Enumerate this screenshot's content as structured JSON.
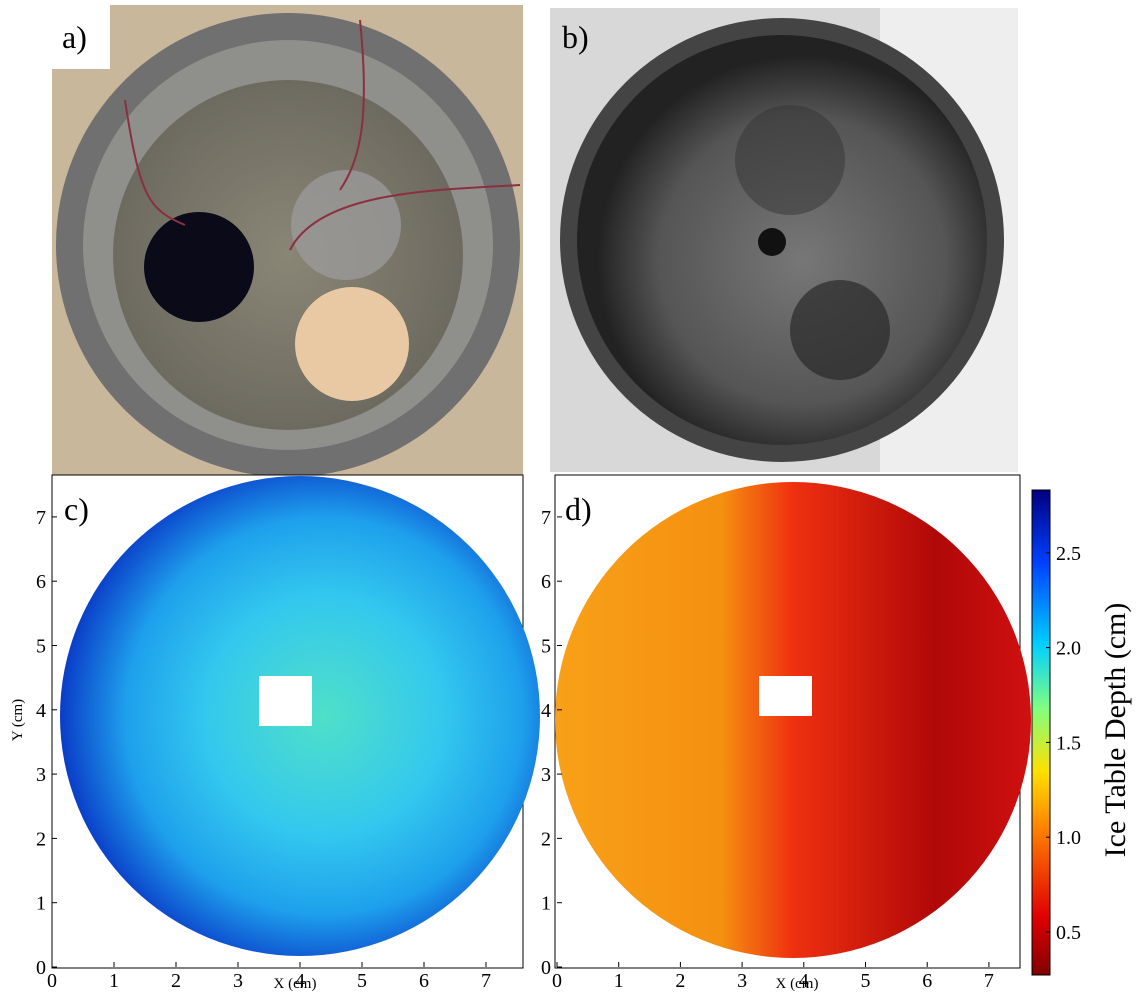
{
  "panels": [
    {
      "label": "a)"
    },
    {
      "label": "b)"
    },
    {
      "label": "c)",
      "x_label": "X (cm)",
      "y_label": "Y (cm)",
      "xticks": [
        "0",
        "1",
        "2",
        "3",
        "4",
        "5",
        "6",
        "7"
      ],
      "yticks": [
        "0",
        "1",
        "2",
        "3",
        "4",
        "5",
        "6",
        "7"
      ]
    },
    {
      "label": "d)",
      "x_label": "X (cm)",
      "xticks": [
        "0",
        "1",
        "2",
        "3",
        "4",
        "5",
        "6",
        "7"
      ],
      "yticks": [
        "0",
        "1",
        "2",
        "3",
        "4",
        "5",
        "6",
        "7"
      ]
    }
  ],
  "colorbar": {
    "label": "Ice Table Depth (cm)",
    "ticks": [
      "0.5",
      "1.0",
      "1.5",
      "2.0",
      "2.5"
    ]
  }
}
